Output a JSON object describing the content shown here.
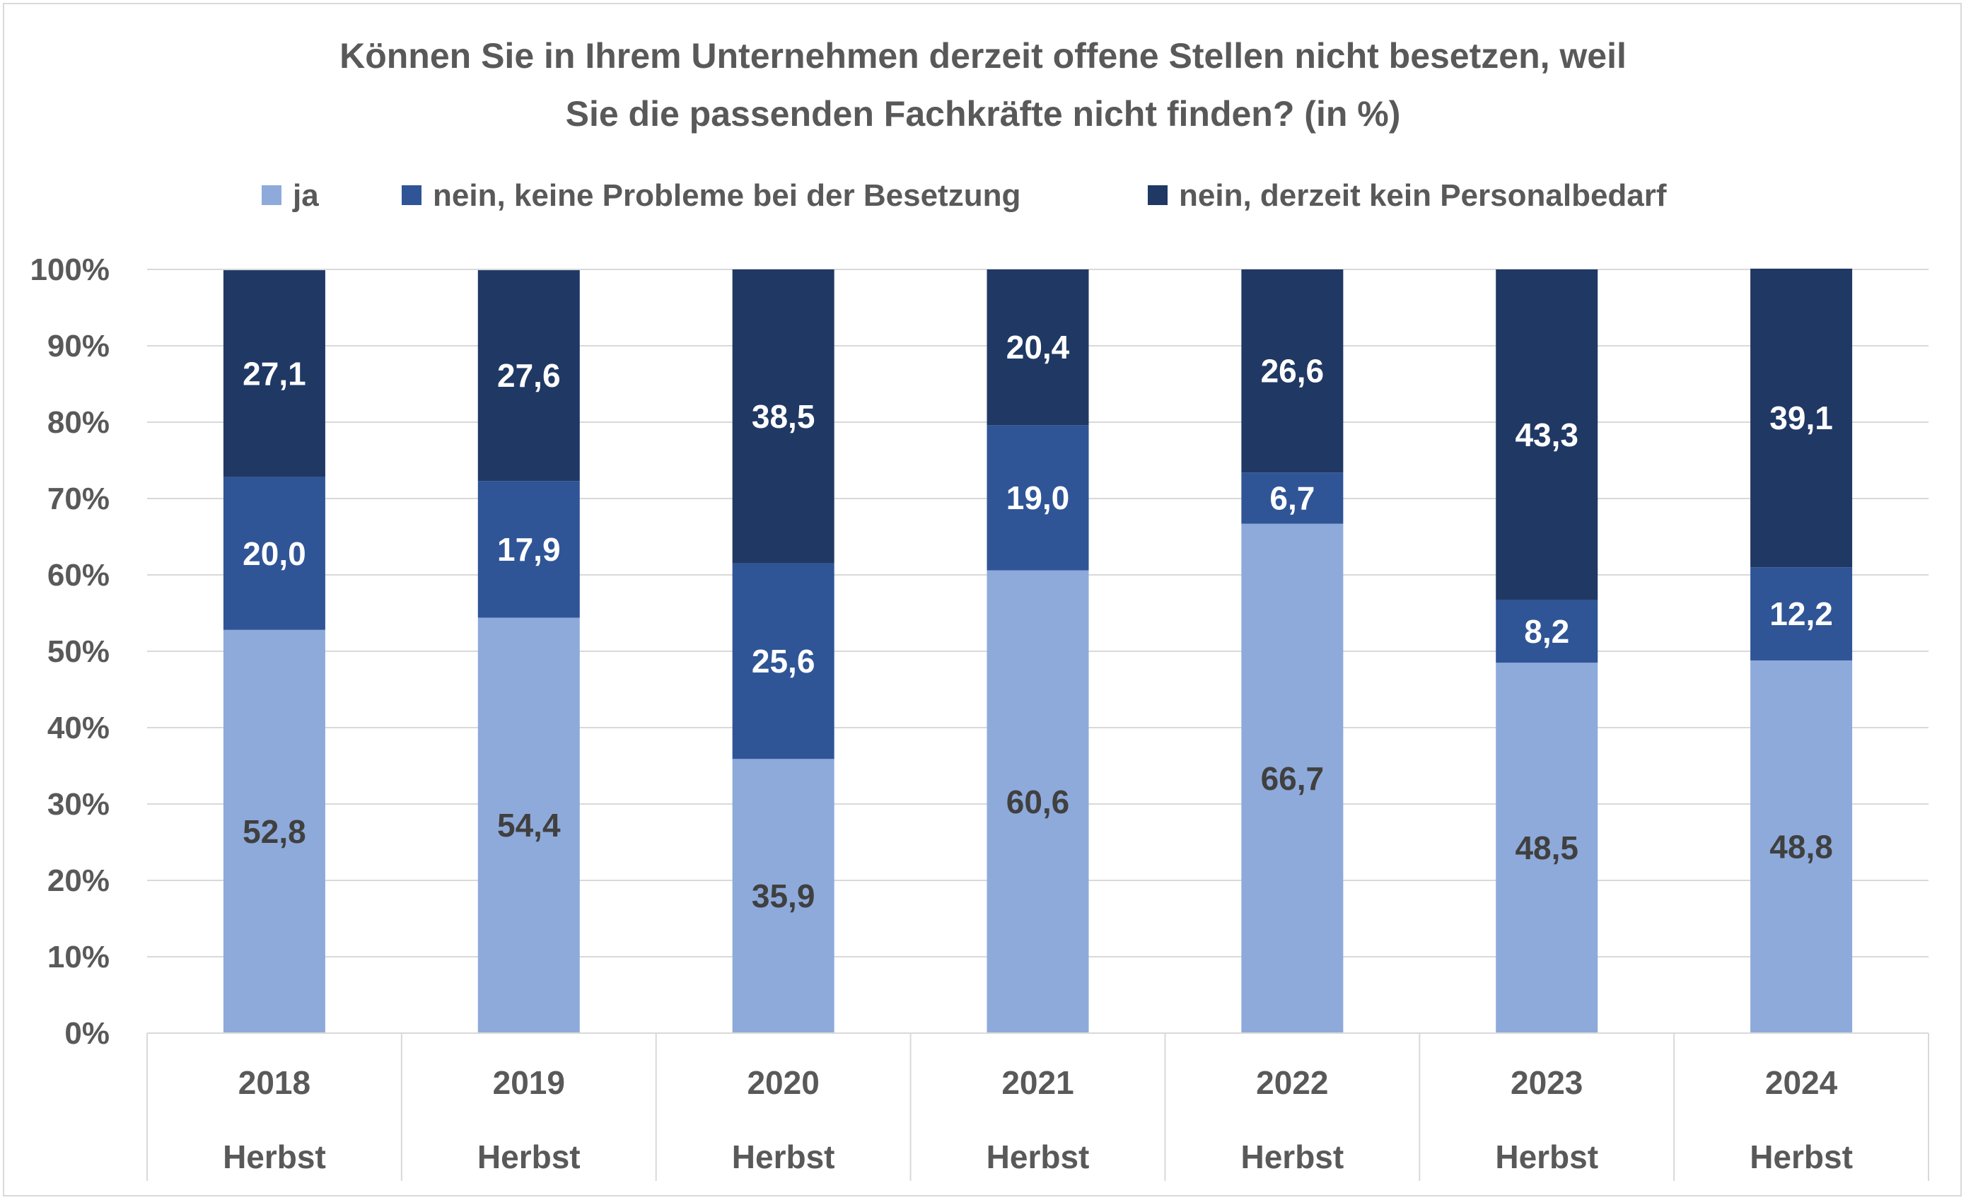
{
  "chart_data": {
    "type": "bar",
    "stacked": true,
    "title": "Können Sie in Ihrem Unternehmen derzeit offene Stellen nicht besetzen, weil Sie die passenden Fachkräfte nicht finden? (in %)",
    "title_lines": [
      "Können Sie in Ihrem Unternehmen derzeit offene Stellen nicht besetzen, weil",
      "Sie die passenden Fachkräfte nicht finden? (in %)"
    ],
    "categories": [
      {
        "year": "2018",
        "season": "Herbst"
      },
      {
        "year": "2019",
        "season": "Herbst"
      },
      {
        "year": "2020",
        "season": "Herbst"
      },
      {
        "year": "2021",
        "season": "Herbst"
      },
      {
        "year": "2022",
        "season": "Herbst"
      },
      {
        "year": "2023",
        "season": "Herbst"
      },
      {
        "year": "2024",
        "season": "Herbst"
      }
    ],
    "series": [
      {
        "name": "ja",
        "color": "#8eaadb",
        "label_color": "#404040",
        "values": [
          52.8,
          54.4,
          35.9,
          60.6,
          66.7,
          48.5,
          48.8
        ],
        "labels": [
          "52,8",
          "54,4",
          "35,9",
          "60,6",
          "66,7",
          "48,5",
          "48,8"
        ]
      },
      {
        "name": "nein, keine Probleme bei der Besetzung",
        "color": "#2f5597",
        "label_color": "#ffffff",
        "values": [
          20.0,
          17.9,
          25.6,
          19.0,
          6.7,
          8.2,
          12.2
        ],
        "labels": [
          "20,0",
          "17,9",
          "25,6",
          "19,0",
          "6,7",
          "8,2",
          "12,2"
        ]
      },
      {
        "name": "nein, derzeit kein Personalbedarf",
        "color": "#203864",
        "label_color": "#ffffff",
        "values": [
          27.1,
          27.6,
          38.5,
          20.4,
          26.6,
          43.3,
          39.1
        ],
        "labels": [
          "27,1",
          "27,6",
          "38,5",
          "20,4",
          "26,6",
          "43,3",
          "39,1"
        ]
      }
    ],
    "y_ticks": [
      "0%",
      "10%",
      "20%",
      "30%",
      "40%",
      "50%",
      "60%",
      "70%",
      "80%",
      "90%",
      "100%"
    ],
    "ylim": [
      0,
      100
    ],
    "grid": true,
    "legend_position": "top"
  }
}
